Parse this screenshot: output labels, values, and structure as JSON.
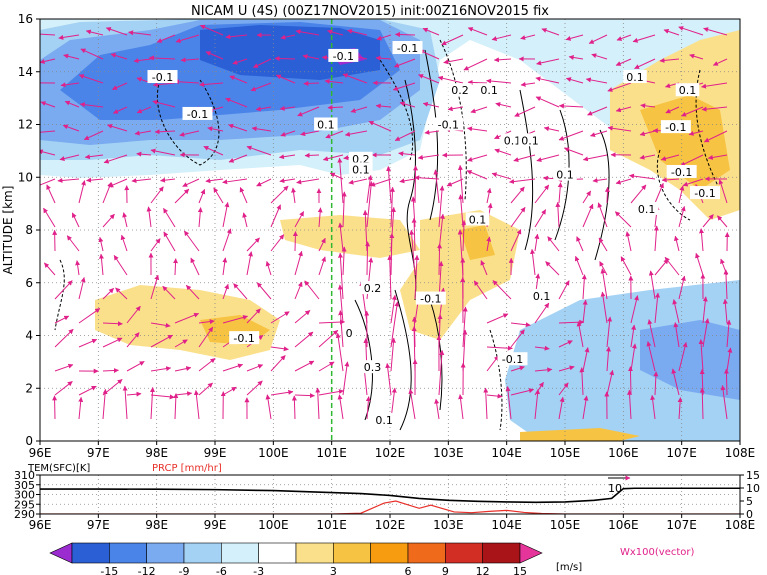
{
  "title": "NICAM U (4S) (00Z17NOV2015) init:00Z16NOV2015 fix",
  "chart_data": [
    {
      "type": "heatmap",
      "title": "NICAM U (4S) (00Z17NOV2015) init:00Z16NOV2015 fix",
      "ylabel": "ALTITUDE [km]",
      "xlim": [
        96,
        108
      ],
      "ylim": [
        0,
        16
      ],
      "x_ticks": [
        "96E",
        "97E",
        "98E",
        "99E",
        "100E",
        "101E",
        "102E",
        "103E",
        "104E",
        "105E",
        "106E",
        "107E",
        "108E"
      ],
      "y_ticks": [
        "0",
        "2",
        "4",
        "6",
        "8",
        "10",
        "12",
        "14",
        "16"
      ],
      "grid": true,
      "marker_line_lon": 101,
      "contour_labels": [
        {
          "text": "-0.1",
          "x": 101.2,
          "y": 14.6
        },
        {
          "text": "-0.1",
          "x": 98.1,
          "y": 13.8
        },
        {
          "text": "-0.1",
          "x": 98.7,
          "y": 12.4
        },
        {
          "text": "-0.1",
          "x": 102.3,
          "y": 14.9
        },
        {
          "text": "-0.1",
          "x": 103.0,
          "y": 12.0
        },
        {
          "text": "0.1",
          "x": 100.9,
          "y": 12.0
        },
        {
          "text": "0.2",
          "x": 103.2,
          "y": 13.3
        },
        {
          "text": "0.1",
          "x": 103.7,
          "y": 13.3
        },
        {
          "text": "0.2",
          "x": 101.5,
          "y": 10.7
        },
        {
          "text": "0.1",
          "x": 101.5,
          "y": 10.3
        },
        {
          "text": "0.1",
          "x": 104.1,
          "y": 11.4
        },
        {
          "text": "0.1",
          "x": 104.4,
          "y": 11.4
        },
        {
          "text": "0.1",
          "x": 105.0,
          "y": 10.1
        },
        {
          "text": "0.1",
          "x": 103.5,
          "y": 8.4
        },
        {
          "text": "0.2",
          "x": 101.7,
          "y": 5.8
        },
        {
          "text": "-0.1",
          "x": 102.7,
          "y": 5.4
        },
        {
          "text": "0",
          "x": 101.3,
          "y": 4.1
        },
        {
          "text": "-0.1",
          "x": 99.5,
          "y": 3.9
        },
        {
          "text": "0.3",
          "x": 101.7,
          "y": 2.8
        },
        {
          "text": "-0.1",
          "x": 104.1,
          "y": 3.1
        },
        {
          "text": "0.1",
          "x": 101.9,
          "y": 0.8
        },
        {
          "text": "0.1",
          "x": 104.6,
          "y": 5.5
        },
        {
          "text": "-0.1",
          "x": 106.9,
          "y": 11.9
        },
        {
          "text": "-0.1",
          "x": 107.0,
          "y": 10.2
        },
        {
          "text": "-0.1",
          "x": 107.4,
          "y": 9.4
        },
        {
          "text": "0.1",
          "x": 106.4,
          "y": 8.8
        },
        {
          "text": "0.1",
          "x": 107.1,
          "y": 13.3
        },
        {
          "text": "0.1",
          "x": 106.2,
          "y": 13.8
        }
      ]
    },
    {
      "type": "line",
      "label_left": "TEM(SFC)[K]",
      "label_right": "PRCP [mm/hr]",
      "xlim": [
        96,
        108
      ],
      "x_ticks": [
        "96E",
        "97E",
        "98E",
        "99E",
        "100E",
        "101E",
        "102E",
        "103E",
        "104E",
        "105E",
        "106E",
        "107E",
        "108E"
      ],
      "y_left_ticks": [
        "290",
        "295",
        "300",
        "305",
        "310"
      ],
      "y_left_lim": [
        290,
        310
      ],
      "y_right_ticks": [
        "0",
        "5",
        "10",
        "15"
      ],
      "y_right_lim": [
        0,
        15
      ],
      "annotation": "10",
      "series": [
        {
          "color": "#000000",
          "x": [
            96,
            97,
            98,
            99,
            100,
            100.5,
            101,
            101.5,
            102,
            102.5,
            103,
            103.5,
            104,
            104.5,
            105,
            105.5,
            105.8,
            106,
            106.2,
            107,
            108
          ],
          "y": [
            302.8,
            302.8,
            302.7,
            302.5,
            302.0,
            301.5,
            301.0,
            300.5,
            299.5,
            298.0,
            297.0,
            296.5,
            296.2,
            296.0,
            296.2,
            297.0,
            298.0,
            303.0,
            303.2,
            303.2,
            303.2
          ]
        },
        {
          "color": "#e8302a",
          "x": [
            96,
            101,
            101.5,
            101.9,
            102.1,
            102.3,
            102.5,
            102.7,
            102.9,
            103.1,
            103.4,
            103.7,
            104.0,
            104.3,
            104.6,
            105.0,
            108
          ],
          "y": [
            0,
            0,
            0.3,
            4.2,
            5.0,
            3.6,
            2.2,
            3.4,
            2.1,
            0.8,
            0.5,
            1.0,
            1.4,
            0.6,
            0.2,
            0,
            0
          ]
        }
      ]
    }
  ],
  "colorbar": {
    "labels": [
      "-15",
      "-12",
      "-9",
      "-6",
      "-3",
      "3",
      "6",
      "9",
      "12",
      "15"
    ],
    "colors": [
      "#9a2cd0",
      "#2a5fd6",
      "#4a84e8",
      "#7aaaf0",
      "#a4d2f4",
      "#d4f0fa",
      "#ffffff",
      "#fbe08c",
      "#f7c342",
      "#f79c10",
      "#f06a1c",
      "#d22e24",
      "#a81418",
      "#e6359a"
    ],
    "unit": "[m/s]",
    "vector_label": "Wx100(vector)"
  }
}
